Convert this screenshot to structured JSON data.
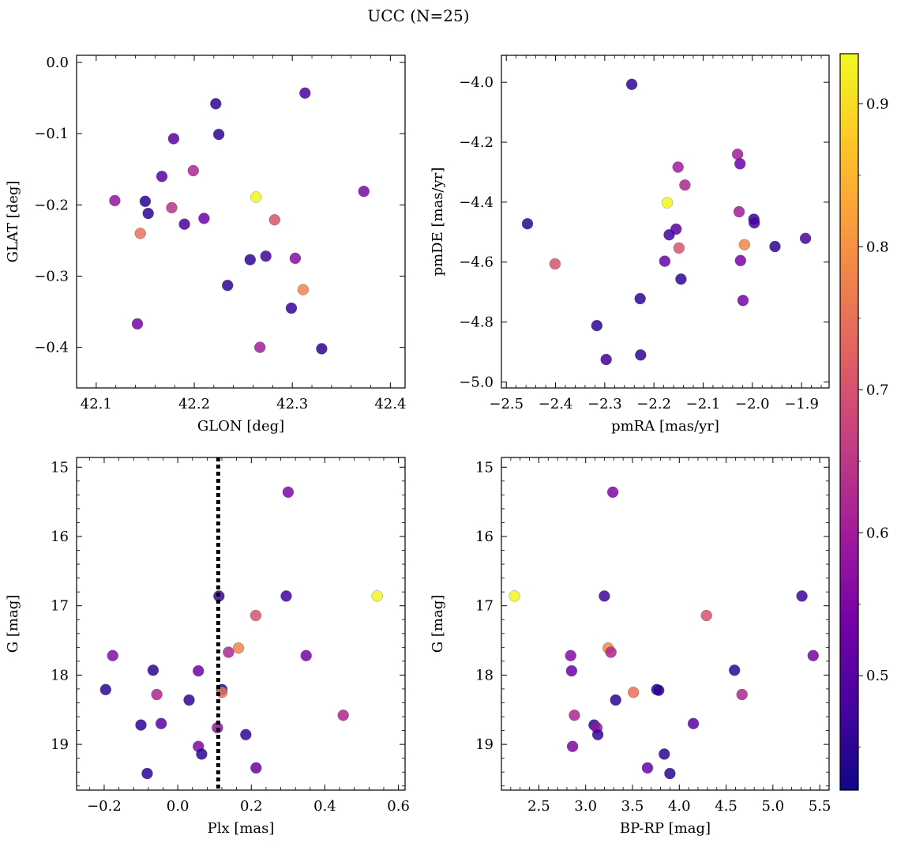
{
  "figure": {
    "title": "UCC (N=25)"
  },
  "colorbar": {
    "min": 0.42,
    "max": 0.935,
    "ticks": [
      0.5,
      0.6,
      0.7,
      0.8,
      0.9
    ],
    "tick_labels": [
      "0.5",
      "0.6",
      "0.7",
      "0.8",
      "0.9"
    ],
    "colormap": [
      "#0d0887",
      "#46039f",
      "#7201a8",
      "#9c179e",
      "#bd3786",
      "#d8576b",
      "#ed7953",
      "#fb9f3a",
      "#fdca26",
      "#f0f921"
    ]
  },
  "chart_data": [
    {
      "id": "glon-glat",
      "type": "scatter",
      "xlabel": "GLON [deg]",
      "ylabel": "GLAT [deg]",
      "xlim": [
        42.08,
        42.415
      ],
      "ylim": [
        -0.457,
        0.01
      ],
      "xticks": [
        42.1,
        42.2,
        42.3,
        42.4
      ],
      "xtick_labels": [
        "42.1",
        "42.2",
        "42.3",
        "42.4"
      ],
      "yticks": [
        0.0,
        -0.1,
        -0.2,
        -0.3,
        -0.4
      ],
      "ytick_labels": [
        "0.0",
        "−0.1",
        "−0.2",
        "−0.3",
        "−0.4"
      ],
      "points": [
        {
          "x": 42.222,
          "y": -0.058,
          "c": 0.45
        },
        {
          "x": 42.313,
          "y": -0.043,
          "c": 0.48
        },
        {
          "x": 42.225,
          "y": -0.101,
          "c": 0.45
        },
        {
          "x": 42.179,
          "y": -0.107,
          "c": 0.5
        },
        {
          "x": 42.199,
          "y": -0.152,
          "c": 0.62
        },
        {
          "x": 42.167,
          "y": -0.16,
          "c": 0.5
        },
        {
          "x": 42.373,
          "y": -0.181,
          "c": 0.55
        },
        {
          "x": 42.119,
          "y": -0.194,
          "c": 0.58
        },
        {
          "x": 42.15,
          "y": -0.195,
          "c": 0.45
        },
        {
          "x": 42.263,
          "y": -0.189,
          "c": 0.93
        },
        {
          "x": 42.177,
          "y": -0.204,
          "c": 0.64
        },
        {
          "x": 42.153,
          "y": -0.212,
          "c": 0.45
        },
        {
          "x": 42.21,
          "y": -0.219,
          "c": 0.52
        },
        {
          "x": 42.282,
          "y": -0.221,
          "c": 0.7
        },
        {
          "x": 42.19,
          "y": -0.227,
          "c": 0.48
        },
        {
          "x": 42.145,
          "y": -0.24,
          "c": 0.75
        },
        {
          "x": 42.257,
          "y": -0.277,
          "c": 0.45
        },
        {
          "x": 42.273,
          "y": -0.272,
          "c": 0.47
        },
        {
          "x": 42.303,
          "y": -0.275,
          "c": 0.56
        },
        {
          "x": 42.234,
          "y": -0.313,
          "c": 0.45
        },
        {
          "x": 42.311,
          "y": -0.319,
          "c": 0.78
        },
        {
          "x": 42.299,
          "y": -0.345,
          "c": 0.46
        },
        {
          "x": 42.142,
          "y": -0.367,
          "c": 0.54
        },
        {
          "x": 42.267,
          "y": -0.4,
          "c": 0.6
        },
        {
          "x": 42.33,
          "y": -0.402,
          "c": 0.45
        }
      ]
    },
    {
      "id": "pm",
      "type": "scatter",
      "xlabel": "pmRA [mas/yr]",
      "ylabel": "pmDE [mas/yr]",
      "xlim": [
        -2.51,
        -1.844
      ],
      "ylim": [
        -5.02,
        -3.91
      ],
      "xticks": [
        -2.5,
        -2.4,
        -2.3,
        -2.2,
        -2.1,
        -2.0,
        -1.9
      ],
      "xtick_labels": [
        "−2.5",
        "−2.4",
        "−2.3",
        "−2.2",
        "−2.1",
        "−2.0",
        "−1.9"
      ],
      "yticks": [
        -4.0,
        -4.2,
        -4.4,
        -4.6,
        -4.8,
        -5.0
      ],
      "ytick_labels": [
        "−4.0",
        "−4.2",
        "−4.4",
        "−4.6",
        "−4.8",
        "−5.0"
      ],
      "points": [
        {
          "x": -2.245,
          "y": -4.007,
          "c": 0.45
        },
        {
          "x": -2.03,
          "y": -4.24,
          "c": 0.6
        },
        {
          "x": -2.025,
          "y": -4.272,
          "c": 0.52
        },
        {
          "x": -2.151,
          "y": -4.283,
          "c": 0.6
        },
        {
          "x": -2.137,
          "y": -4.343,
          "c": 0.62
        },
        {
          "x": -2.173,
          "y": -4.402,
          "c": 0.93
        },
        {
          "x": -2.027,
          "y": -4.432,
          "c": 0.6
        },
        {
          "x": -1.997,
          "y": -4.457,
          "c": 0.46
        },
        {
          "x": -1.996,
          "y": -4.469,
          "c": 0.48
        },
        {
          "x": -2.457,
          "y": -4.472,
          "c": 0.45
        },
        {
          "x": -2.155,
          "y": -4.49,
          "c": 0.5
        },
        {
          "x": -2.169,
          "y": -4.509,
          "c": 0.47
        },
        {
          "x": -2.016,
          "y": -4.542,
          "c": 0.78
        },
        {
          "x": -1.892,
          "y": -4.521,
          "c": 0.48
        },
        {
          "x": -1.954,
          "y": -4.548,
          "c": 0.45
        },
        {
          "x": -2.149,
          "y": -4.553,
          "c": 0.7
        },
        {
          "x": -2.024,
          "y": -4.595,
          "c": 0.54
        },
        {
          "x": -2.178,
          "y": -4.597,
          "c": 0.52
        },
        {
          "x": -2.401,
          "y": -4.606,
          "c": 0.7
        },
        {
          "x": -2.145,
          "y": -4.657,
          "c": 0.45
        },
        {
          "x": -2.228,
          "y": -4.722,
          "c": 0.45
        },
        {
          "x": -2.019,
          "y": -4.728,
          "c": 0.54
        },
        {
          "x": -2.316,
          "y": -4.812,
          "c": 0.45
        },
        {
          "x": -2.227,
          "y": -4.91,
          "c": 0.45
        },
        {
          "x": -2.297,
          "y": -4.925,
          "c": 0.47
        }
      ]
    },
    {
      "id": "plx-g",
      "type": "scatter",
      "xlabel": "Plx [mas]",
      "ylabel": "G [mag]",
      "xlim": [
        -0.275,
        0.618
      ],
      "ylim": [
        19.66,
        14.86
      ],
      "xticks": [
        -0.2,
        0.0,
        0.2,
        0.4,
        0.6
      ],
      "xtick_labels": [
        "−0.2",
        "0.0",
        "0.2",
        "0.4",
        "0.6"
      ],
      "yticks": [
        15,
        16,
        17,
        18,
        19
      ],
      "ytick_labels": [
        "15",
        "16",
        "17",
        "18",
        "19"
      ],
      "vline": 0.11,
      "points": [
        {
          "x": 0.3,
          "y": 15.36,
          "c": 0.55
        },
        {
          "x": 0.112,
          "y": 16.86,
          "c": 0.47
        },
        {
          "x": 0.295,
          "y": 16.86,
          "c": 0.47
        },
        {
          "x": 0.542,
          "y": 16.86,
          "c": 0.93
        },
        {
          "x": 0.212,
          "y": 17.14,
          "c": 0.7
        },
        {
          "x": 0.165,
          "y": 17.61,
          "c": 0.78
        },
        {
          "x": 0.138,
          "y": 17.67,
          "c": 0.62
        },
        {
          "x": -0.177,
          "y": 17.72,
          "c": 0.56
        },
        {
          "x": 0.349,
          "y": 17.72,
          "c": 0.54
        },
        {
          "x": -0.067,
          "y": 17.93,
          "c": 0.45
        },
        {
          "x": 0.056,
          "y": 17.94,
          "c": 0.53
        },
        {
          "x": -0.196,
          "y": 18.21,
          "c": 0.45
        },
        {
          "x": 0.12,
          "y": 18.21,
          "c": 0.45
        },
        {
          "x": 0.12,
          "y": 18.25,
          "c": 0.75
        },
        {
          "x": -0.057,
          "y": 18.28,
          "c": 0.62
        },
        {
          "x": 0.031,
          "y": 18.36,
          "c": 0.45
        },
        {
          "x": 0.45,
          "y": 18.58,
          "c": 0.62
        },
        {
          "x": -0.045,
          "y": 18.7,
          "c": 0.5
        },
        {
          "x": -0.1,
          "y": 18.72,
          "c": 0.45
        },
        {
          "x": 0.108,
          "y": 18.76,
          "c": 0.58
        },
        {
          "x": 0.185,
          "y": 18.86,
          "c": 0.46
        },
        {
          "x": 0.056,
          "y": 19.03,
          "c": 0.55
        },
        {
          "x": 0.065,
          "y": 19.14,
          "c": 0.45
        },
        {
          "x": 0.213,
          "y": 19.34,
          "c": 0.52
        },
        {
          "x": -0.083,
          "y": 19.42,
          "c": 0.45
        }
      ]
    },
    {
      "id": "color-g",
      "type": "scatter",
      "xlabel": "BP-RP [mag]",
      "ylabel": "G [mag]",
      "xlim": [
        2.1,
        5.6
      ],
      "ylim": [
        19.66,
        14.86
      ],
      "xticks": [
        2.5,
        3.0,
        3.5,
        4.0,
        4.5,
        5.0,
        5.5
      ],
      "xtick_labels": [
        "2.5",
        "3.0",
        "3.5",
        "4.0",
        "4.5",
        "5.0",
        "5.5"
      ],
      "yticks": [
        15,
        16,
        17,
        18,
        19
      ],
      "ytick_labels": [
        "15",
        "16",
        "17",
        "18",
        "19"
      ],
      "points": [
        {
          "x": 3.29,
          "y": 15.36,
          "c": 0.55
        },
        {
          "x": 2.24,
          "y": 16.86,
          "c": 0.93
        },
        {
          "x": 3.2,
          "y": 16.86,
          "c": 0.47
        },
        {
          "x": 5.31,
          "y": 16.86,
          "c": 0.47
        },
        {
          "x": 4.29,
          "y": 17.14,
          "c": 0.7
        },
        {
          "x": 3.24,
          "y": 17.61,
          "c": 0.78
        },
        {
          "x": 3.27,
          "y": 17.67,
          "c": 0.62
        },
        {
          "x": 2.84,
          "y": 17.72,
          "c": 0.56
        },
        {
          "x": 5.43,
          "y": 17.72,
          "c": 0.54
        },
        {
          "x": 4.59,
          "y": 17.93,
          "c": 0.45
        },
        {
          "x": 2.85,
          "y": 17.94,
          "c": 0.53
        },
        {
          "x": 3.76,
          "y": 18.21,
          "c": 0.45
        },
        {
          "x": 3.78,
          "y": 18.22,
          "c": 0.45
        },
        {
          "x": 3.51,
          "y": 18.25,
          "c": 0.75
        },
        {
          "x": 4.67,
          "y": 18.28,
          "c": 0.62
        },
        {
          "x": 3.32,
          "y": 18.36,
          "c": 0.45
        },
        {
          "x": 2.88,
          "y": 18.58,
          "c": 0.62
        },
        {
          "x": 4.15,
          "y": 18.7,
          "c": 0.5
        },
        {
          "x": 3.09,
          "y": 18.72,
          "c": 0.45
        },
        {
          "x": 3.12,
          "y": 18.76,
          "c": 0.58
        },
        {
          "x": 3.13,
          "y": 18.86,
          "c": 0.46
        },
        {
          "x": 2.86,
          "y": 19.03,
          "c": 0.55
        },
        {
          "x": 3.84,
          "y": 19.14,
          "c": 0.45
        },
        {
          "x": 3.66,
          "y": 19.34,
          "c": 0.52
        },
        {
          "x": 3.9,
          "y": 19.42,
          "c": 0.45
        }
      ]
    }
  ]
}
